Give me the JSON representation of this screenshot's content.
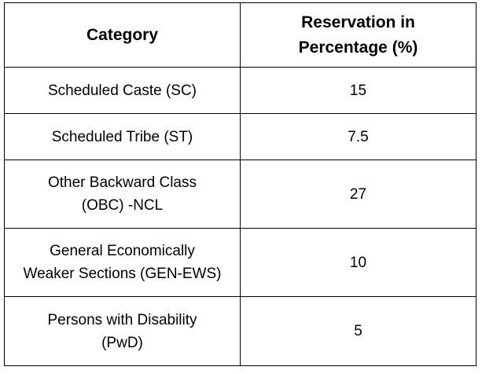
{
  "table": {
    "header": {
      "category": [
        "Category"
      ],
      "reservation": [
        "Reservation in",
        "Percentage (%)"
      ]
    },
    "rows": [
      {
        "category": [
          "Scheduled Caste (SC)"
        ],
        "reservation": 15
      },
      {
        "category": [
          "Scheduled Tribe (ST)"
        ],
        "reservation": 7.5
      },
      {
        "category": [
          "Other Backward Class",
          "(OBC) -NCL"
        ],
        "reservation": 27
      },
      {
        "category": [
          "General Economically",
          "Weaker Sections (GEN-EWS)"
        ],
        "reservation": 10
      },
      {
        "category": [
          "Persons with Disability",
          "(PwD)"
        ],
        "reservation": 5
      }
    ]
  }
}
